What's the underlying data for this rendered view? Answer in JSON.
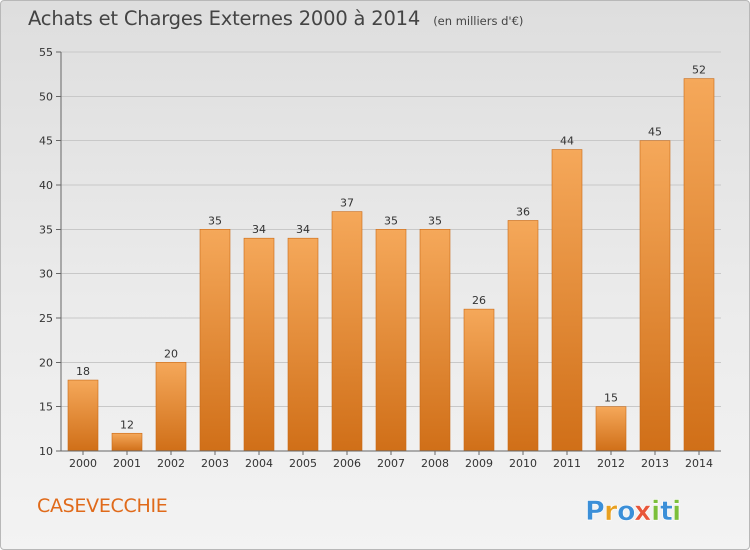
{
  "title": "Achats et Charges Externes 2000 à 2014",
  "unit_note": "(en milliers d'€)",
  "commune": "CASEVECCHIE",
  "brand": {
    "name": "Proxiti",
    "letters": [
      {
        "ch": "P",
        "color": "#3b8fd8"
      },
      {
        "ch": "r",
        "color": "#e8a020"
      },
      {
        "ch": "o",
        "color": "#3b8fd8"
      },
      {
        "ch": "x",
        "color": "#e8563a"
      },
      {
        "ch": "i",
        "color": "#7bbf3a"
      },
      {
        "ch": "t",
        "color": "#3b8fd8"
      },
      {
        "ch": "i",
        "color": "#7bbf3a"
      }
    ]
  },
  "colors": {
    "bar_top": "#f5a85a",
    "bar_bottom": "#d06f18",
    "grid": "#c8c8c8",
    "commune": "#e06a1a"
  },
  "chart_data": {
    "type": "bar",
    "title": "Achats et Charges Externes 2000 à 2014",
    "xlabel": "",
    "ylabel": "",
    "categories": [
      "2000",
      "2001",
      "2002",
      "2003",
      "2004",
      "2005",
      "2006",
      "2007",
      "2008",
      "2009",
      "2010",
      "2011",
      "2012",
      "2013",
      "2014"
    ],
    "values": [
      18,
      12,
      20,
      35,
      34,
      34,
      37,
      35,
      35,
      26,
      36,
      44,
      15,
      45,
      52
    ],
    "ylim": [
      10,
      55
    ],
    "yticks": [
      10,
      15,
      20,
      25,
      30,
      35,
      40,
      45,
      50,
      55
    ],
    "grid": true,
    "data_labels": true
  }
}
